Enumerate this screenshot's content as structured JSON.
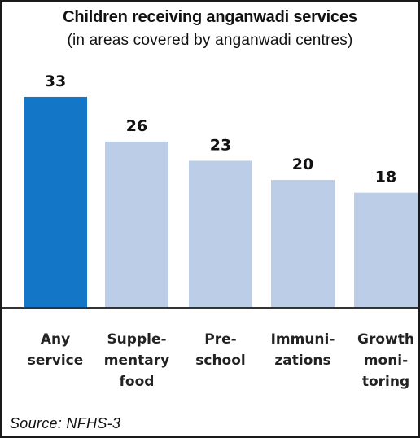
{
  "chart_data": {
    "type": "bar",
    "title": "Children receiving anganwadi services",
    "subtitle": "(in areas covered by anganwadi centres)",
    "categories": [
      [
        "Any",
        "service"
      ],
      [
        "Supple-",
        "mentary",
        "food"
      ],
      [
        "Pre-",
        "school"
      ],
      [
        "Immuni-",
        "zations"
      ],
      [
        "Growth",
        "moni-",
        "toring"
      ]
    ],
    "values": [
      33,
      26,
      23,
      20,
      18
    ],
    "ylim": [
      0,
      40
    ],
    "grid": false,
    "legend": "none",
    "colors": {
      "highlight": "#1476c6",
      "bar": "#bccde8"
    }
  },
  "source": "Source:  NFHS-3"
}
